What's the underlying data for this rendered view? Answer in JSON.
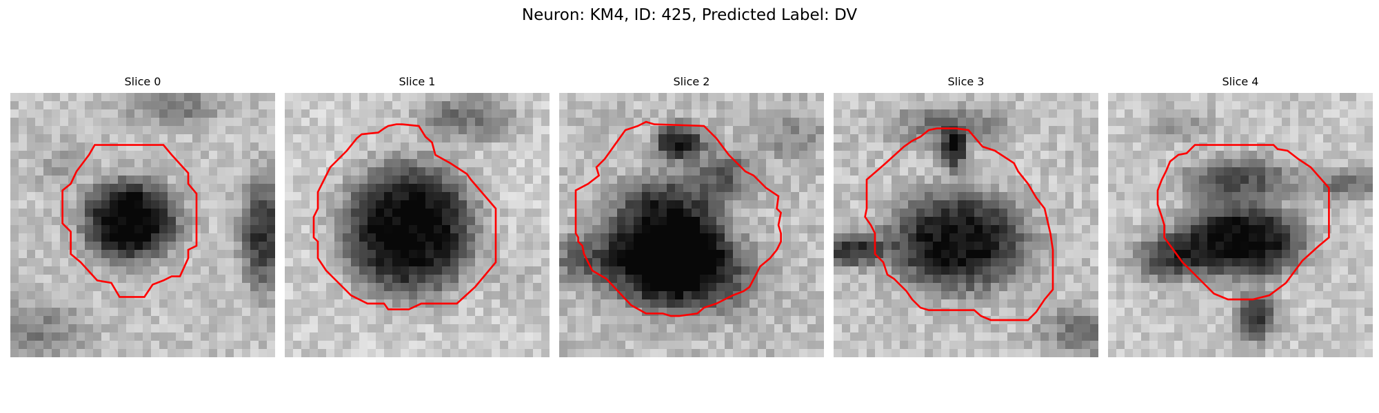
{
  "title": "Neuron: KM4, ID: 425, Predicted Label: DV",
  "image": {
    "colormap": "grayscale",
    "contour_color": "#ff0000"
  },
  "slices": [
    {
      "label": "Slice 0"
    },
    {
      "label": "Slice 1"
    },
    {
      "label": "Slice 2"
    },
    {
      "label": "Slice 3"
    },
    {
      "label": "Slice 4"
    }
  ]
}
